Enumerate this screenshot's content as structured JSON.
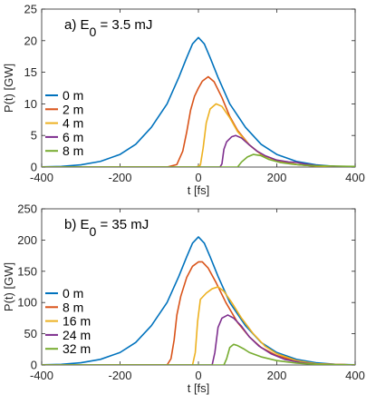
{
  "chart_data": [
    {
      "type": "line",
      "panel": "a",
      "title_prefix": "a) E",
      "title_sub": "0",
      "title_suffix": " = 3.5 mJ",
      "xlabel": "t [fs]",
      "ylabel": "P(t) [GW]",
      "xlim": [
        -400,
        400
      ],
      "ylim": [
        0,
        25
      ],
      "xticks": [
        -400,
        -200,
        0,
        200,
        400
      ],
      "yticks": [
        0,
        5,
        10,
        15,
        20,
        25
      ],
      "legend_position": "left",
      "grid": false,
      "series": [
        {
          "name": "0 m",
          "color": "#0072BD",
          "points": [
            [
              -400,
              0.02
            ],
            [
              -350,
              0.1
            ],
            [
              -300,
              0.35
            ],
            [
              -250,
              0.9
            ],
            [
              -200,
              2.0
            ],
            [
              -160,
              3.6
            ],
            [
              -120,
              6.3
            ],
            [
              -80,
              10.0
            ],
            [
              -50,
              14.2
            ],
            [
              -30,
              17.3
            ],
            [
              -15,
              19.5
            ],
            [
              0,
              20.5
            ],
            [
              15,
              19.5
            ],
            [
              30,
              17.3
            ],
            [
              50,
              14.2
            ],
            [
              80,
              10.0
            ],
            [
              120,
              6.3
            ],
            [
              160,
              3.6
            ],
            [
              200,
              2.0
            ],
            [
              250,
              0.9
            ],
            [
              300,
              0.35
            ],
            [
              350,
              0.1
            ],
            [
              400,
              0.02
            ]
          ]
        },
        {
          "name": "2 m",
          "color": "#D95319",
          "points": [
            [
              -400,
              0
            ],
            [
              -80,
              0
            ],
            [
              -55,
              0.4
            ],
            [
              -40,
              2.5
            ],
            [
              -30,
              5.5
            ],
            [
              -20,
              9.0
            ],
            [
              -10,
              11.2
            ],
            [
              0,
              12.5
            ],
            [
              10,
              13.6
            ],
            [
              25,
              14.3
            ],
            [
              40,
              13.5
            ],
            [
              60,
              11.0
            ],
            [
              80,
              8.0
            ],
            [
              100,
              5.8
            ],
            [
              130,
              3.5
            ],
            [
              160,
              2.0
            ],
            [
              200,
              1.0
            ],
            [
              250,
              0.4
            ],
            [
              300,
              0.15
            ],
            [
              400,
              0
            ]
          ]
        },
        {
          "name": "4 m",
          "color": "#EDB120",
          "points": [
            [
              -400,
              0
            ],
            [
              -5,
              0
            ],
            [
              5,
              0.3
            ],
            [
              12,
              3.0
            ],
            [
              20,
              7.0
            ],
            [
              30,
              9.2
            ],
            [
              45,
              10.0
            ],
            [
              60,
              9.6
            ],
            [
              80,
              7.8
            ],
            [
              100,
              5.6
            ],
            [
              130,
              3.5
            ],
            [
              160,
              2.0
            ],
            [
              200,
              1.0
            ],
            [
              250,
              0.4
            ],
            [
              300,
              0.15
            ],
            [
              400,
              0
            ]
          ]
        },
        {
          "name": "6 m",
          "color": "#7E2F8E",
          "points": [
            [
              -400,
              0
            ],
            [
              55,
              0
            ],
            [
              60,
              0.5
            ],
            [
              65,
              2.8
            ],
            [
              72,
              4.0
            ],
            [
              85,
              4.8
            ],
            [
              95,
              5.0
            ],
            [
              110,
              4.6
            ],
            [
              130,
              3.5
            ],
            [
              150,
              2.5
            ],
            [
              170,
              1.8
            ],
            [
              200,
              1.1
            ],
            [
              230,
              0.8
            ],
            [
              250,
              0.75
            ],
            [
              270,
              0.5
            ],
            [
              300,
              0.25
            ],
            [
              350,
              0.1
            ],
            [
              400,
              0
            ]
          ]
        },
        {
          "name": "8 m",
          "color": "#77AC30",
          "points": [
            [
              -400,
              0
            ],
            [
              100,
              0
            ],
            [
              110,
              0.8
            ],
            [
              125,
              1.6
            ],
            [
              140,
              2.0
            ],
            [
              160,
              1.8
            ],
            [
              180,
              1.2
            ],
            [
              210,
              0.7
            ],
            [
              240,
              0.45
            ],
            [
              270,
              0.3
            ],
            [
              300,
              0.2
            ],
            [
              350,
              0.15
            ],
            [
              400,
              0.1
            ]
          ]
        }
      ]
    },
    {
      "type": "line",
      "panel": "b",
      "title_prefix": "b) E",
      "title_sub": "0",
      "title_suffix": " = 35 mJ",
      "xlabel": "t [fs]",
      "ylabel": "P(t) [GW]",
      "xlim": [
        -400,
        400
      ],
      "ylim": [
        0,
        250
      ],
      "xticks": [
        -400,
        -200,
        0,
        200,
        400
      ],
      "yticks": [
        0,
        50,
        100,
        150,
        200,
        250
      ],
      "legend_position": "left",
      "grid": false,
      "series": [
        {
          "name": "0 m",
          "color": "#0072BD",
          "points": [
            [
              -400,
              0.2
            ],
            [
              -350,
              1.0
            ],
            [
              -300,
              3.5
            ],
            [
              -250,
              9.0
            ],
            [
              -200,
              20.0
            ],
            [
              -160,
              36.0
            ],
            [
              -120,
              63.0
            ],
            [
              -80,
              100.0
            ],
            [
              -50,
              142.0
            ],
            [
              -30,
              173.0
            ],
            [
              -15,
              195.0
            ],
            [
              0,
              205.0
            ],
            [
              15,
              195.0
            ],
            [
              30,
              173.0
            ],
            [
              50,
              142.0
            ],
            [
              80,
              100.0
            ],
            [
              120,
              63.0
            ],
            [
              160,
              36.0
            ],
            [
              200,
              20.0
            ],
            [
              250,
              9.0
            ],
            [
              300,
              3.5
            ],
            [
              350,
              1.0
            ],
            [
              400,
              0.2
            ]
          ]
        },
        {
          "name": "8 m",
          "color": "#D95319",
          "points": [
            [
              -400,
              0
            ],
            [
              -80,
              0
            ],
            [
              -70,
              10
            ],
            [
              -62,
              40
            ],
            [
              -55,
              80
            ],
            [
              -45,
              110
            ],
            [
              -30,
              140
            ],
            [
              -15,
              158
            ],
            [
              0,
              165
            ],
            [
              10,
              165
            ],
            [
              25,
              155
            ],
            [
              45,
              132
            ],
            [
              70,
              100
            ],
            [
              100,
              68
            ],
            [
              130,
              45
            ],
            [
              160,
              28
            ],
            [
              200,
              15
            ],
            [
              250,
              6
            ],
            [
              300,
              2
            ],
            [
              400,
              0
            ]
          ]
        },
        {
          "name": "16 m",
          "color": "#EDB120",
          "points": [
            [
              -400,
              0
            ],
            [
              -15,
              0
            ],
            [
              -8,
              20
            ],
            [
              -2,
              70
            ],
            [
              5,
              105
            ],
            [
              20,
              115
            ],
            [
              35,
              122
            ],
            [
              50,
              125
            ],
            [
              65,
              118
            ],
            [
              85,
              100
            ],
            [
              110,
              75
            ],
            [
              140,
              50
            ],
            [
              170,
              30
            ],
            [
              200,
              18
            ],
            [
              250,
              7
            ],
            [
              300,
              2
            ],
            [
              400,
              0
            ]
          ]
        },
        {
          "name": "24 m",
          "color": "#7E2F8E",
          "points": [
            [
              -400,
              0
            ],
            [
              35,
              0
            ],
            [
              42,
              20
            ],
            [
              50,
              60
            ],
            [
              60,
              75
            ],
            [
              75,
              80
            ],
            [
              90,
              75
            ],
            [
              110,
              62
            ],
            [
              130,
              45
            ],
            [
              155,
              30
            ],
            [
              185,
              18
            ],
            [
              220,
              9
            ],
            [
              260,
              4
            ],
            [
              300,
              1
            ],
            [
              400,
              0
            ]
          ]
        },
        {
          "name": "32 m",
          "color": "#77AC30",
          "points": [
            [
              -400,
              0
            ],
            [
              65,
              0
            ],
            [
              72,
              10
            ],
            [
              80,
              28
            ],
            [
              90,
              33
            ],
            [
              100,
              31
            ],
            [
              115,
              26
            ],
            [
              130,
              20
            ],
            [
              160,
              13
            ],
            [
              200,
              7
            ],
            [
              250,
              3
            ],
            [
              300,
              1
            ],
            [
              400,
              0
            ]
          ]
        }
      ]
    }
  ]
}
